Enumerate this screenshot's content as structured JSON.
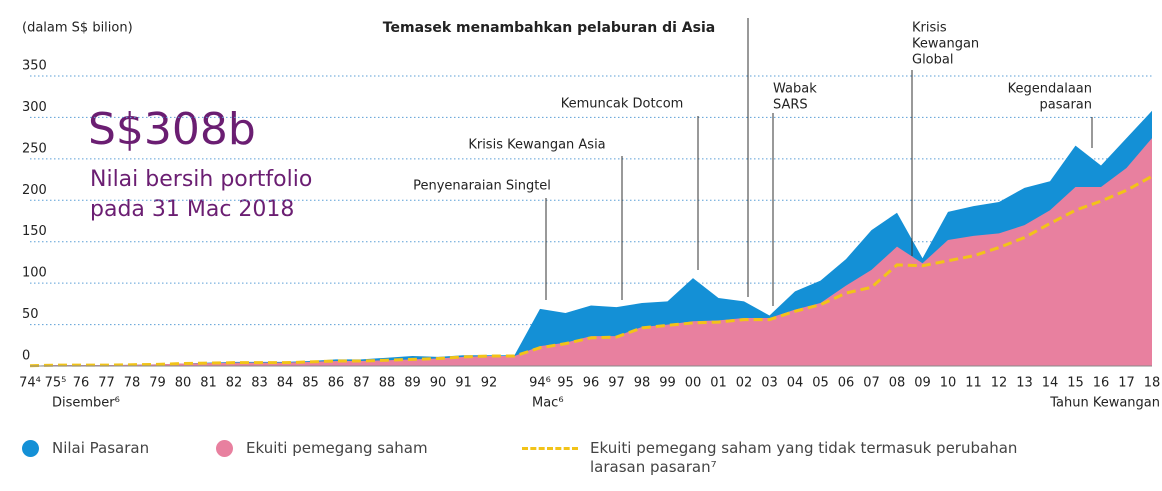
{
  "chart_data": {
    "type": "area",
    "title": "Temasek menambahkan pelaburan di Asia",
    "ylabel": "(dalam S$ bilion)",
    "xlabel": "Tahun Kewangan",
    "x_notes": [
      "Disember⁶",
      "Mac⁶"
    ],
    "headline": "S$308b",
    "headline_sub": [
      "Nilai bersih portfolio",
      "pada 31 Mac 2018"
    ],
    "categories": [
      "74⁴",
      "75⁵",
      "76",
      "77",
      "78",
      "79",
      "80",
      "81",
      "82",
      "83",
      "84",
      "85",
      "86",
      "87",
      "88",
      "89",
      "90",
      "91",
      "92",
      null,
      "94⁶",
      "95",
      "96",
      "97",
      "98",
      "99",
      "00",
      "01",
      "02",
      "03",
      "04",
      "05",
      "06",
      "07",
      "08",
      "09",
      "10",
      "11",
      "12",
      "13",
      "14",
      "15",
      "16",
      "17",
      "18"
    ],
    "series": [
      {
        "name": "Nilai Pasaran",
        "color": "#1490d6",
        "style": "area",
        "values": [
          0.35,
          1,
          1,
          1,
          1.5,
          2,
          3,
          4,
          5,
          5,
          5,
          6,
          8,
          8,
          10,
          12,
          11,
          13,
          13,
          13,
          69,
          64,
          73,
          71,
          76,
          78,
          106,
          82,
          78,
          61,
          90,
          103,
          129,
          164,
          185,
          130,
          186,
          193,
          198,
          215,
          223,
          266,
          242,
          275,
          308
        ]
      },
      {
        "name": "Ekuiti pemegang saham",
        "color": "#e8809f",
        "style": "area",
        "values": [
          0.35,
          1,
          1,
          1,
          1.5,
          2,
          3,
          3.5,
          4,
          4,
          4,
          5,
          6,
          6,
          7,
          8,
          9,
          11,
          12,
          12,
          24,
          28,
          36,
          36,
          47,
          50,
          54,
          55,
          58,
          58,
          68,
          76,
          97,
          116,
          144,
          124,
          152,
          157,
          160,
          170,
          188,
          216,
          216,
          239,
          275
        ]
      },
      {
        "name": "Ekuiti pemegang saham yang tidak termasuk perubahan larasan pasaran⁷",
        "color": "#f2c318",
        "style": "dashed",
        "values": [
          0.35,
          1,
          1,
          1,
          1.5,
          2,
          3,
          3.5,
          4,
          4,
          4,
          5,
          6,
          6,
          7,
          8,
          9,
          11,
          12,
          12,
          22,
          27,
          34,
          35,
          46,
          49,
          52,
          53,
          56,
          56,
          66,
          74,
          88,
          95,
          122,
          121,
          127,
          133,
          143,
          155,
          172,
          188,
          199,
          212,
          229
        ]
      }
    ],
    "annotations": [
      {
        "lines": [
          "Penyenaraian Singtel"
        ]
      },
      {
        "lines": [
          "Krisis Kewangan Asia"
        ]
      },
      {
        "lines": [
          "Kemuncak Dotcom"
        ]
      },
      {
        "lines": [
          "Wabak",
          "SARS"
        ]
      },
      {
        "lines": [
          "Krisis",
          "Kewangan",
          "Global"
        ]
      },
      {
        "lines": [
          "Kegendalaan",
          "pasaran"
        ]
      }
    ],
    "ylim": [
      0,
      350
    ],
    "yticks": [
      0,
      50,
      100,
      150,
      200,
      250,
      300,
      350
    ],
    "grid": true
  }
}
